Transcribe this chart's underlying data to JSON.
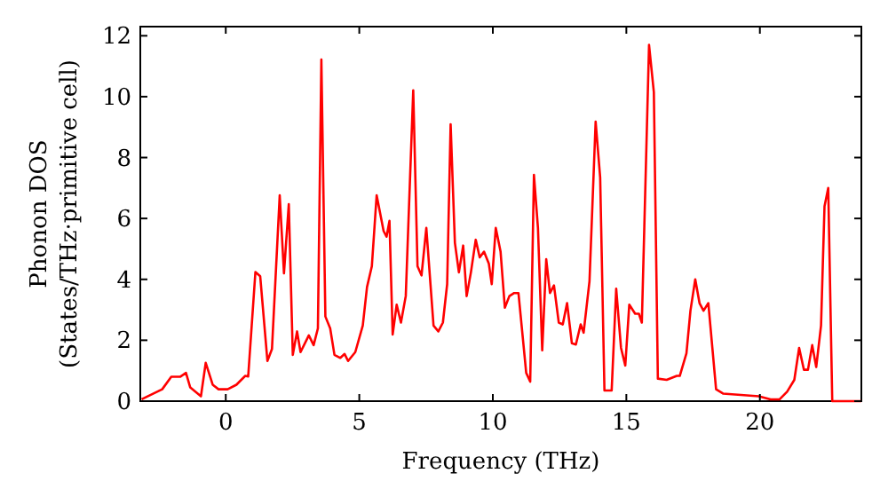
{
  "chart_data": {
    "type": "line",
    "xlabel": "Frequency (THz)",
    "ylabel": "Phonon DOS\n(States/THz·primitive cell)",
    "xlim": [
      -3.2,
      23.8
    ],
    "ylim": [
      0,
      12.3
    ],
    "xticks": [
      0,
      5,
      10,
      15,
      20
    ],
    "yticks": [
      0,
      2,
      4,
      6,
      8,
      10,
      12
    ],
    "grid": false,
    "marker": "none",
    "line_style": "solid",
    "series": [
      {
        "color": "#ff0000",
        "x": [
          -3.15,
          -2.38,
          -2.04,
          -1.71,
          -1.49,
          -1.33,
          -0.93,
          -0.75,
          -0.49,
          -0.27,
          0.07,
          0.4,
          0.73,
          0.84,
          1.11,
          1.29,
          1.56,
          1.73,
          2.02,
          2.18,
          2.36,
          2.51,
          2.67,
          2.8,
          3.11,
          3.29,
          3.45,
          3.58,
          3.73,
          3.91,
          4.07,
          4.29,
          4.45,
          4.58,
          4.85,
          5.13,
          5.29,
          5.47,
          5.65,
          5.91,
          6.02,
          6.13,
          6.25,
          6.4,
          6.56,
          6.74,
          7.02,
          7.18,
          7.33,
          7.51,
          7.78,
          7.96,
          8.13,
          8.29,
          8.42,
          8.58,
          8.73,
          8.89,
          9.02,
          9.18,
          9.36,
          9.51,
          9.67,
          9.85,
          9.96,
          10.11,
          10.29,
          10.45,
          10.62,
          10.8,
          10.96,
          11.25,
          11.4,
          11.54,
          11.69,
          11.85,
          12.0,
          12.14,
          12.29,
          12.47,
          12.62,
          12.78,
          12.96,
          13.11,
          13.29,
          13.4,
          13.62,
          13.85,
          14.02,
          14.18,
          14.45,
          14.62,
          14.8,
          14.96,
          15.11,
          15.33,
          15.47,
          15.58,
          15.85,
          16.03,
          16.18,
          16.51,
          16.89,
          17.0,
          17.25,
          17.4,
          17.58,
          17.74,
          17.89,
          18.07,
          18.36,
          18.62,
          19.96,
          20.4,
          20.74,
          21.02,
          21.29,
          21.47,
          21.65,
          21.8,
          21.96,
          22.11,
          22.29,
          22.42,
          22.56,
          22.71,
          23.8
        ],
        "values": [
          0.06,
          0.39,
          0.8,
          0.8,
          0.93,
          0.45,
          0.16,
          1.26,
          0.54,
          0.39,
          0.39,
          0.54,
          0.83,
          0.81,
          4.24,
          4.1,
          1.32,
          1.71,
          6.76,
          4.2,
          6.47,
          1.52,
          2.29,
          1.61,
          2.16,
          1.84,
          2.39,
          11.22,
          2.78,
          2.39,
          1.52,
          1.42,
          1.55,
          1.32,
          1.61,
          2.48,
          3.75,
          4.43,
          6.76,
          5.59,
          5.4,
          5.92,
          2.19,
          3.17,
          2.58,
          3.45,
          10.21,
          4.43,
          4.13,
          5.69,
          2.48,
          2.29,
          2.58,
          3.84,
          9.09,
          5.2,
          4.23,
          5.11,
          3.45,
          4.23,
          5.3,
          4.72,
          4.91,
          4.52,
          3.84,
          5.69,
          4.91,
          3.07,
          3.45,
          3.55,
          3.55,
          0.93,
          0.64,
          7.43,
          5.69,
          1.67,
          4.66,
          3.55,
          3.8,
          2.58,
          2.52,
          3.22,
          1.9,
          1.86,
          2.52,
          2.25,
          3.94,
          9.18,
          7.34,
          0.35,
          0.35,
          3.69,
          1.75,
          1.17,
          3.17,
          2.87,
          2.87,
          2.58,
          11.7,
          10.15,
          0.74,
          0.7,
          0.83,
          0.83,
          1.57,
          2.97,
          4.0,
          3.22,
          2.97,
          3.22,
          0.39,
          0.25,
          0.16,
          0.06,
          0.06,
          0.31,
          0.7,
          1.75,
          1.03,
          1.03,
          1.84,
          1.12,
          2.48,
          6.4,
          7.0,
          0,
          0
        ]
      }
    ]
  }
}
